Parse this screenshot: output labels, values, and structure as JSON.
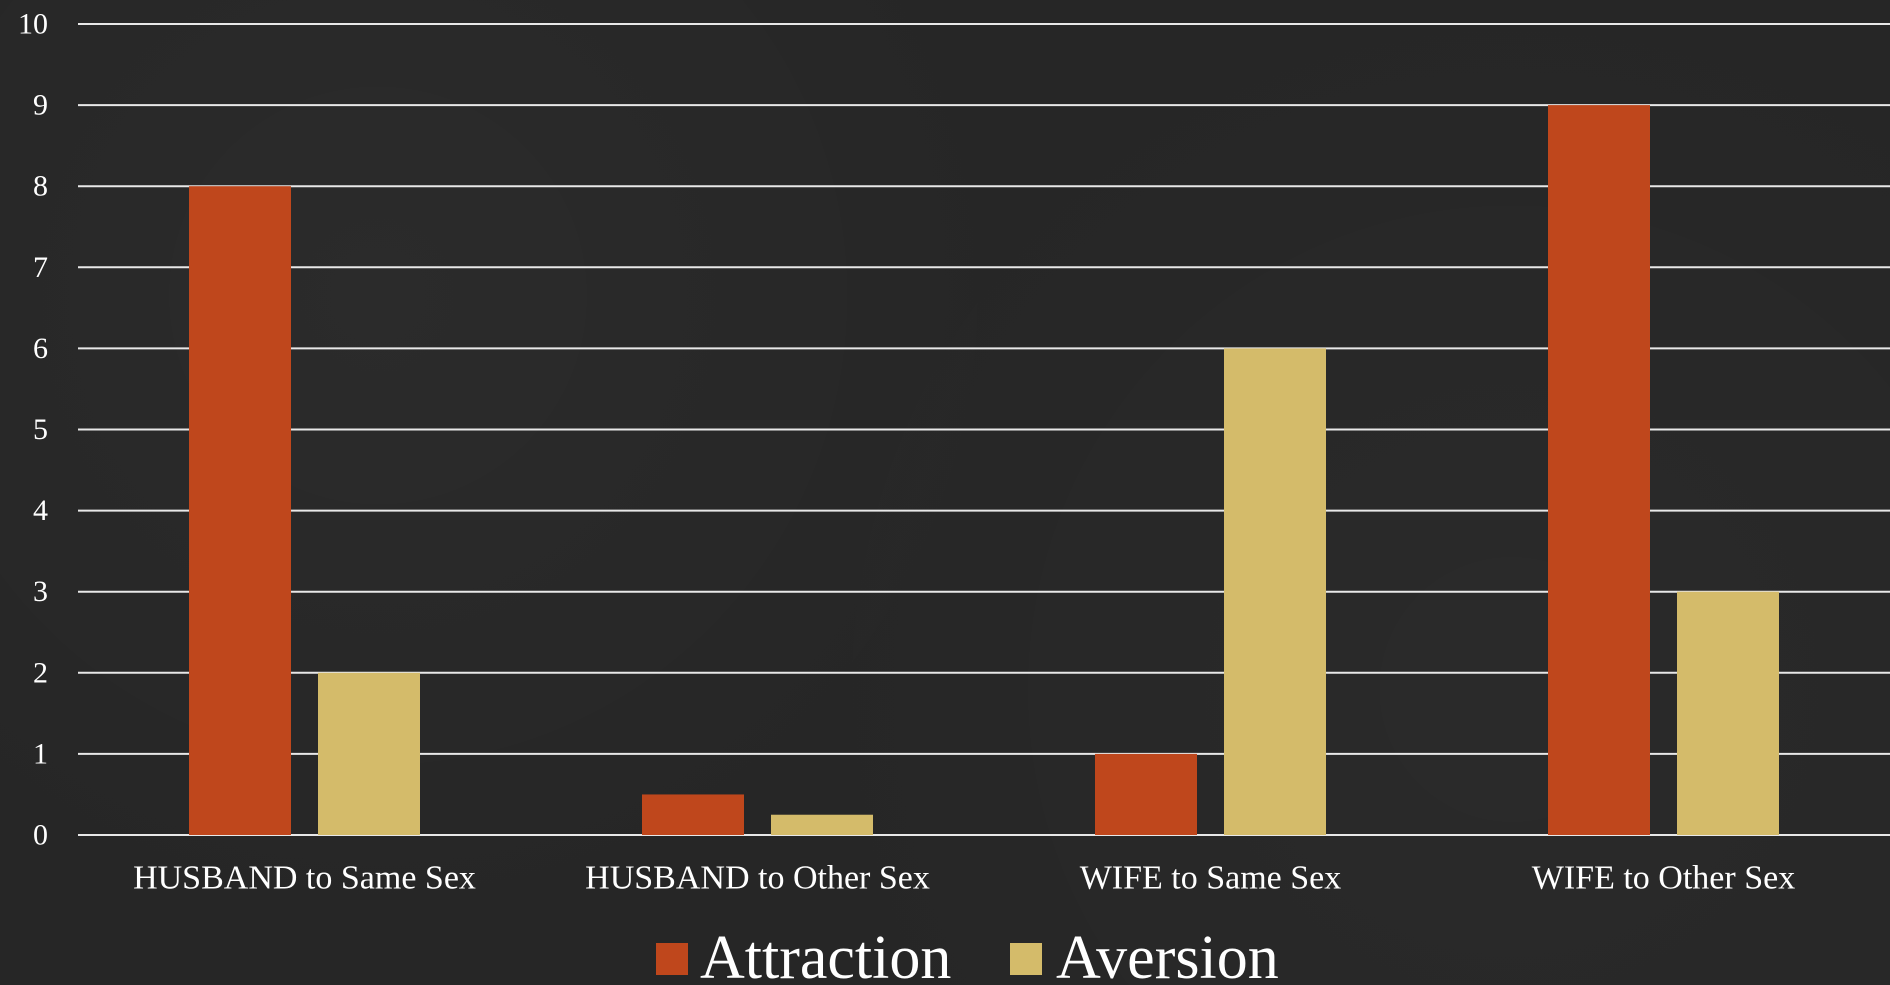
{
  "chart_data": {
    "type": "bar",
    "categories": [
      "HUSBAND to Same Sex",
      "HUSBAND to Other Sex",
      "WIFE to Same Sex",
      "WIFE to Other Sex"
    ],
    "series": [
      {
        "name": "Attraction",
        "values": [
          8,
          0.5,
          1,
          9
        ],
        "color": "#bf471c"
      },
      {
        "name": "Aversion",
        "values": [
          2,
          0.25,
          6,
          3
        ],
        "color": "#d4bb6a"
      }
    ],
    "ylim": [
      0,
      10
    ],
    "yticks": [
      0,
      1,
      2,
      3,
      4,
      5,
      6,
      7,
      8,
      9,
      10
    ],
    "grid": true,
    "legend_position": "bottom",
    "title": "",
    "xlabel": "",
    "ylabel": ""
  },
  "colors": {
    "background": "#262626",
    "gridline": "#e8e8e8",
    "text": "#ffffff"
  }
}
